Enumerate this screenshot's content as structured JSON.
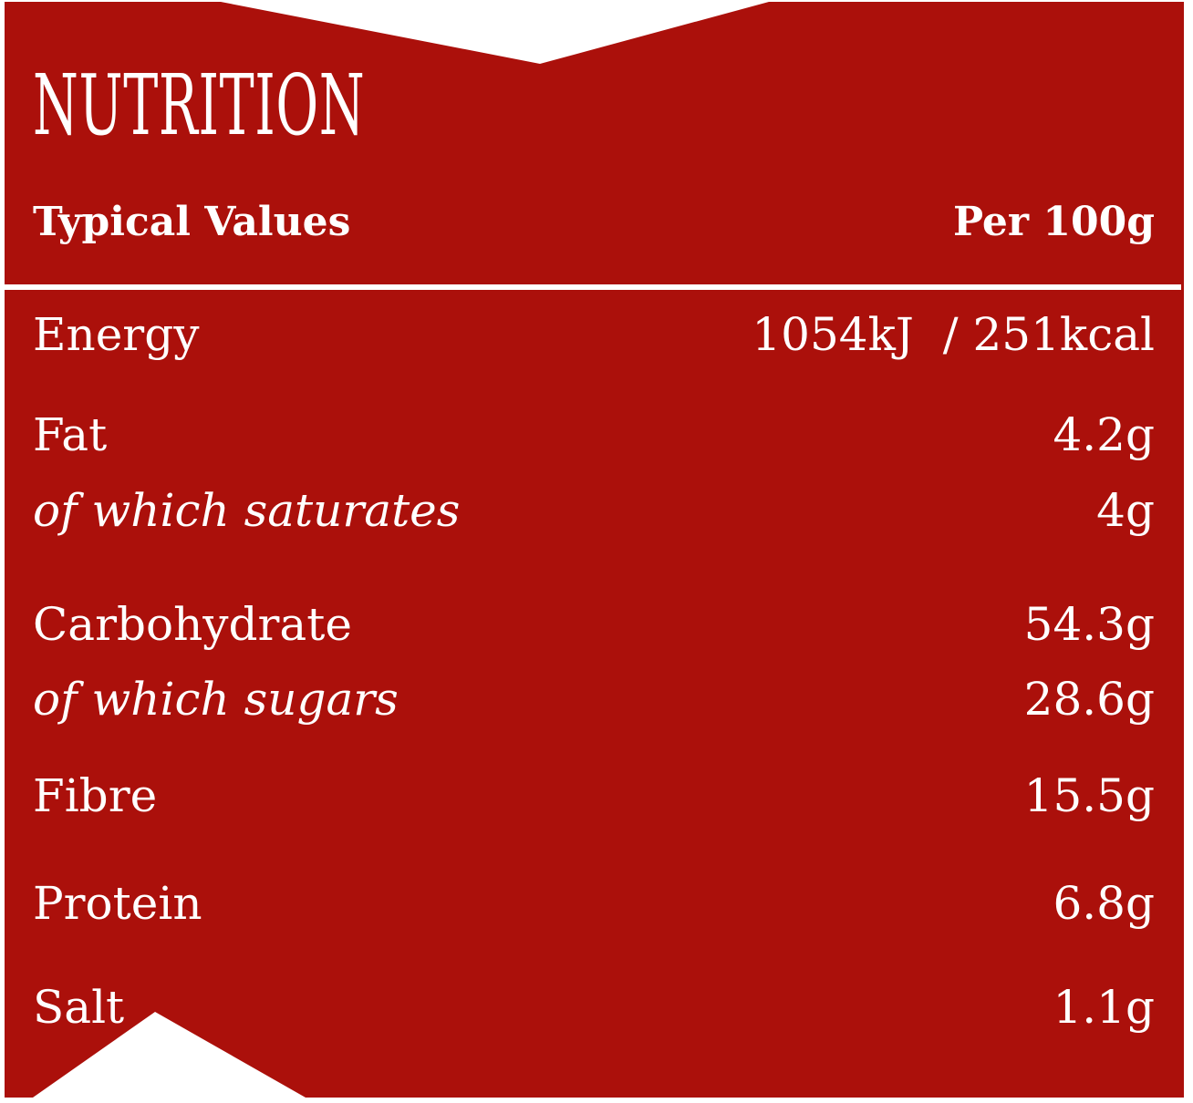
{
  "colors": {
    "background": "#ab100b",
    "text": "#ffffff"
  },
  "title": "NUTRITION",
  "header": {
    "left": "Typical Values",
    "right": "Per 100g"
  },
  "rows": [
    {
      "label": "Energy",
      "value": "1054kJ  / 251kcal",
      "sub": false
    },
    {
      "label": "Fat",
      "value": "4.2g",
      "sub": false
    },
    {
      "label": "of which saturates",
      "value": "4g",
      "sub": true
    },
    {
      "label": "Carbohydrate",
      "value": "54.3g",
      "sub": false
    },
    {
      "label": "of which sugars",
      "value": "28.6g",
      "sub": true
    },
    {
      "label": "Fibre",
      "value": "15.5g",
      "sub": false
    },
    {
      "label": "Protein",
      "value": "6.8g",
      "sub": false
    },
    {
      "label": "Salt",
      "value": "1.1g",
      "sub": false
    }
  ]
}
